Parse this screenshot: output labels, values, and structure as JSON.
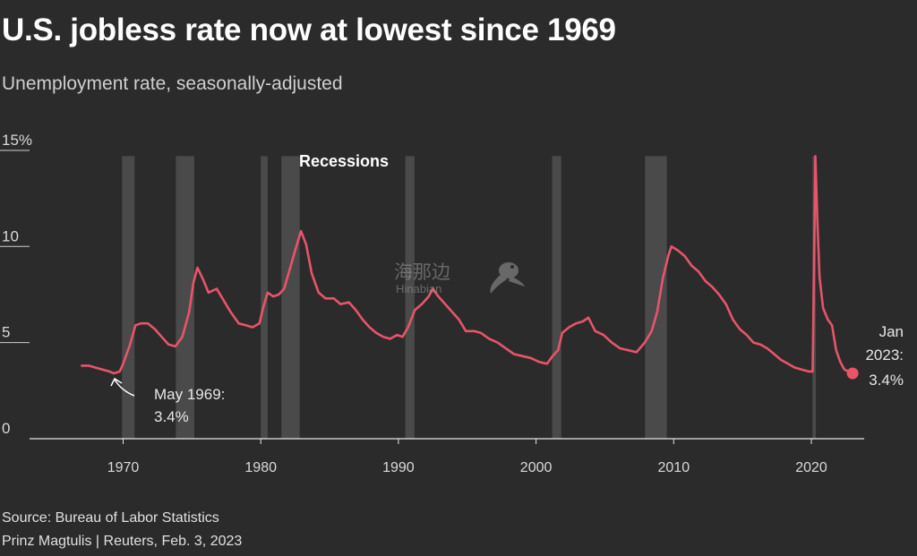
{
  "header": {
    "title": "U.S. jobless rate now at lowest since 1969",
    "subtitle": "Unemployment rate, seasonally-adjusted"
  },
  "footer": {
    "source": "Source: Bureau of Labor Statistics",
    "credit": "Prinz Magtulis | Reuters, Feb. 3, 2023"
  },
  "watermark": {
    "cn": "海那边",
    "en": "Hinabian"
  },
  "chart_data": {
    "type": "line",
    "title": "U.S. jobless rate now at lowest since 1969",
    "subtitle": "Unemployment rate, seasonally-adjusted",
    "xlim": [
      1967,
      2023.5
    ],
    "ylim": [
      0,
      15
    ],
    "y_ticks": [
      0,
      5,
      10,
      15
    ],
    "y_tick_labels": [
      "0",
      "5",
      "10",
      "15%"
    ],
    "x_ticks": [
      1970,
      1980,
      1990,
      2000,
      2010,
      2020
    ],
    "x_tick_labels": [
      "1970",
      "1980",
      "1990",
      "2000",
      "2010",
      "2020"
    ],
    "line_color": "#e8546a",
    "band_color": "#4a4a4a",
    "recession_label": "Recessions",
    "recessions": [
      [
        1969.92,
        1970.83
      ],
      [
        1973.83,
        1975.17
      ],
      [
        1980.0,
        1980.5
      ],
      [
        1981.5,
        1982.83
      ],
      [
        1990.5,
        1991.17
      ],
      [
        2001.17,
        2001.83
      ],
      [
        2007.92,
        2009.5
      ],
      [
        2020.08,
        2020.33
      ]
    ],
    "series": [
      {
        "x": [
          1967.0,
          1967.5,
          1968.0,
          1968.5,
          1969.0,
          1969.33,
          1969.75,
          1970.0,
          1970.5,
          1970.9,
          1971.3,
          1971.8,
          1972.3,
          1972.8,
          1973.3,
          1973.8,
          1974.3,
          1974.8,
          1975.1,
          1975.4,
          1975.8,
          1976.2,
          1976.8,
          1977.3,
          1977.8,
          1978.4,
          1978.9,
          1979.4,
          1979.9,
          1980.2,
          1980.5,
          1980.9,
          1981.3,
          1981.7,
          1982.1,
          1982.5,
          1982.92,
          1983.3,
          1983.7,
          1984.2,
          1984.7,
          1985.3,
          1985.8,
          1986.4,
          1986.9,
          1987.4,
          1987.9,
          1988.4,
          1988.9,
          1989.4,
          1989.9,
          1990.3,
          1990.7,
          1991.2,
          1991.7,
          1992.2,
          1992.5,
          1992.9,
          1993.4,
          1993.9,
          1994.4,
          1994.9,
          1995.5,
          1996.0,
          1996.6,
          1997.2,
          1997.8,
          1998.4,
          1999.0,
          1999.6,
          2000.2,
          2000.8,
          2001.2,
          2001.6,
          2001.9,
          2002.4,
          2002.9,
          2003.4,
          2003.8,
          2004.3,
          2004.9,
          2005.5,
          2006.1,
          2006.7,
          2007.3,
          2007.9,
          2008.4,
          2008.8,
          2009.2,
          2009.6,
          2009.83,
          2010.3,
          2010.8,
          2011.3,
          2011.8,
          2012.3,
          2012.8,
          2013.3,
          2013.8,
          2014.3,
          2014.8,
          2015.3,
          2015.8,
          2016.3,
          2016.8,
          2017.3,
          2017.8,
          2018.3,
          2018.8,
          2019.3,
          2019.8,
          2020.1,
          2020.29,
          2020.45,
          2020.6,
          2020.85,
          2021.2,
          2021.5,
          2021.8,
          2022.1,
          2022.4,
          2022.7,
          2022.95
        ],
        "values": [
          3.8,
          3.8,
          3.7,
          3.6,
          3.5,
          3.4,
          3.5,
          3.9,
          4.9,
          5.9,
          6.0,
          6.0,
          5.7,
          5.3,
          4.9,
          4.8,
          5.3,
          6.6,
          8.1,
          8.9,
          8.3,
          7.6,
          7.8,
          7.2,
          6.6,
          6.0,
          5.9,
          5.8,
          6.0,
          6.9,
          7.6,
          7.4,
          7.5,
          7.8,
          8.8,
          9.8,
          10.8,
          10.1,
          8.6,
          7.6,
          7.3,
          7.3,
          7.0,
          7.1,
          6.7,
          6.2,
          5.8,
          5.5,
          5.3,
          5.2,
          5.4,
          5.3,
          5.8,
          6.7,
          7.0,
          7.4,
          7.8,
          7.4,
          7.0,
          6.6,
          6.2,
          5.6,
          5.6,
          5.5,
          5.2,
          5.0,
          4.7,
          4.4,
          4.3,
          4.2,
          4.0,
          3.9,
          4.3,
          4.6,
          5.5,
          5.8,
          6.0,
          6.1,
          6.3,
          5.6,
          5.4,
          5.0,
          4.7,
          4.6,
          4.5,
          5.0,
          5.6,
          6.6,
          8.3,
          9.5,
          10.0,
          9.8,
          9.5,
          9.0,
          8.7,
          8.2,
          7.9,
          7.5,
          7.0,
          6.2,
          5.7,
          5.4,
          5.0,
          4.9,
          4.7,
          4.4,
          4.1,
          3.9,
          3.7,
          3.6,
          3.5,
          3.5,
          14.7,
          11.1,
          8.4,
          6.8,
          6.2,
          5.9,
          4.6,
          4.0,
          3.6,
          3.5,
          3.4
        ]
      }
    ],
    "annotations": [
      {
        "label_line1": "May 1969:",
        "label_line2": "3.4%",
        "x": 1969.33,
        "y": 3.4
      },
      {
        "label_line1": "Jan",
        "label_line2": "2023:",
        "label_line3": "3.4%",
        "x": 2023.0,
        "y": 3.4
      }
    ]
  }
}
